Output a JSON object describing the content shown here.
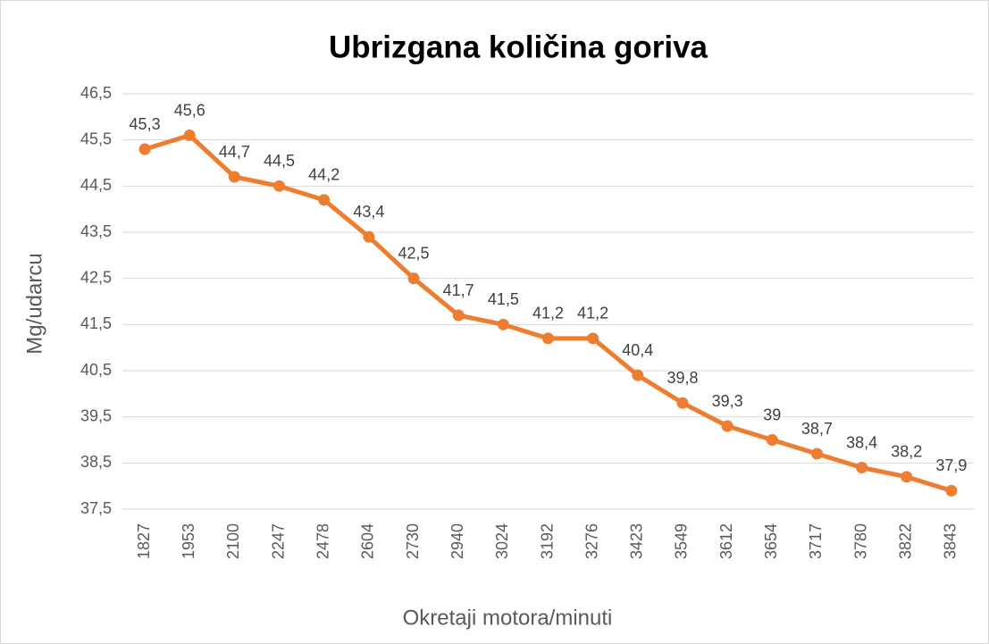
{
  "chart_data": {
    "type": "line",
    "title": "Ubrizgana količina goriva",
    "ylabel": "Mg/udarcu",
    "xlabel": "Okretaji motora/minuti",
    "categories": [
      "1827",
      "1953",
      "2100",
      "2247",
      "2478",
      "2604",
      "2730",
      "2940",
      "3024",
      "3192",
      "3276",
      "3423",
      "3549",
      "3612",
      "3654",
      "3717",
      "3780",
      "3822",
      "3843"
    ],
    "series": [
      {
        "name": "Ubrizgana količina goriva",
        "color": "#ed7d31",
        "values": [
          45.3,
          45.6,
          44.7,
          44.5,
          44.2,
          43.4,
          42.5,
          41.7,
          41.5,
          41.2,
          41.2,
          40.4,
          39.8,
          39.3,
          39,
          38.7,
          38.4,
          38.2,
          37.9
        ],
        "value_labels": [
          "45,3",
          "45,6",
          "44,7",
          "44,5",
          "44,2",
          "43,4",
          "42,5",
          "41,7",
          "41,5",
          "41,2",
          "41,2",
          "40,4",
          "39,8",
          "39,3",
          "39",
          "38,7",
          "38,4",
          "38,2",
          "37,9"
        ]
      }
    ],
    "ylim": [
      37.5,
      46.5
    ],
    "yticks": [
      {
        "value": 37.5,
        "label": "37,5"
      },
      {
        "value": 38.5,
        "label": "38,5"
      },
      {
        "value": 39.5,
        "label": "39,5"
      },
      {
        "value": 40.5,
        "label": "40,5"
      },
      {
        "value": 41.5,
        "label": "41,5"
      },
      {
        "value": 42.5,
        "label": "42,5"
      },
      {
        "value": 43.5,
        "label": "43,5"
      },
      {
        "value": 44.5,
        "label": "44,5"
      },
      {
        "value": 45.5,
        "label": "45,5"
      },
      {
        "value": 46.5,
        "label": "46,5"
      }
    ],
    "grid": true
  }
}
